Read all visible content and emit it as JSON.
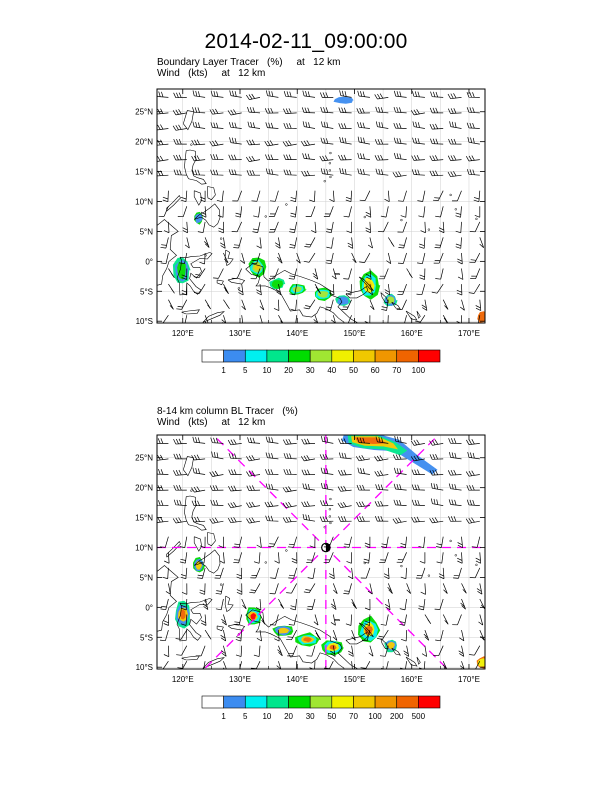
{
  "title": "2014-02-11_09:00:00",
  "colors": {
    "coast": "#000000",
    "grid": "#cfcfcf",
    "barb": "#000000",
    "crosshair": "#ff00ff"
  },
  "panels": [
    {
      "id": "top",
      "subtitle_line1": "Boundary Layer Tracer   (%)     at   12 km",
      "subtitle_line2": "Wind   (kts)     at   12 km",
      "lat_ticks": [
        "25°N",
        "20°N",
        "15°N",
        "10°N",
        "5°N",
        "0°",
        "5°S",
        "10°S"
      ],
      "lon_ticks": [
        "120°E",
        "130°E",
        "140°E",
        "150°E",
        "160°E",
        "170°E"
      ],
      "colorbar": {
        "labels": [
          "1",
          "5",
          "10",
          "20",
          "30",
          "40",
          "50",
          "60",
          "70",
          "100"
        ],
        "colors": [
          "#ffffff",
          "#3c8cf0",
          "#00f0f0",
          "#00e68c",
          "#00dc00",
          "#a0e632",
          "#f0f000",
          "#f0c800",
          "#f09600",
          "#f06400",
          "#ff0000"
        ]
      },
      "show_crosshair": false
    },
    {
      "id": "bottom",
      "subtitle_line1": "8-14 km column BL Tracer   (%)",
      "subtitle_line2": "Wind   (kts)     at   12 km",
      "lat_ticks": [
        "25°N",
        "20°N",
        "15°N",
        "10°N",
        "5°N",
        "0°",
        "5°S",
        "10°S"
      ],
      "lon_ticks": [
        "120°E",
        "130°E",
        "140°E",
        "150°E",
        "160°E",
        "170°E"
      ],
      "colorbar": {
        "labels": [
          "1",
          "5",
          "10",
          "20",
          "30",
          "50",
          "70",
          "100",
          "200",
          "500"
        ],
        "colors": [
          "#ffffff",
          "#3c8cf0",
          "#00f0f0",
          "#00e68c",
          "#00dc00",
          "#a0e632",
          "#f0f000",
          "#f0c800",
          "#f09600",
          "#f06400",
          "#ff0000"
        ]
      },
      "show_crosshair": true
    }
  ]
}
